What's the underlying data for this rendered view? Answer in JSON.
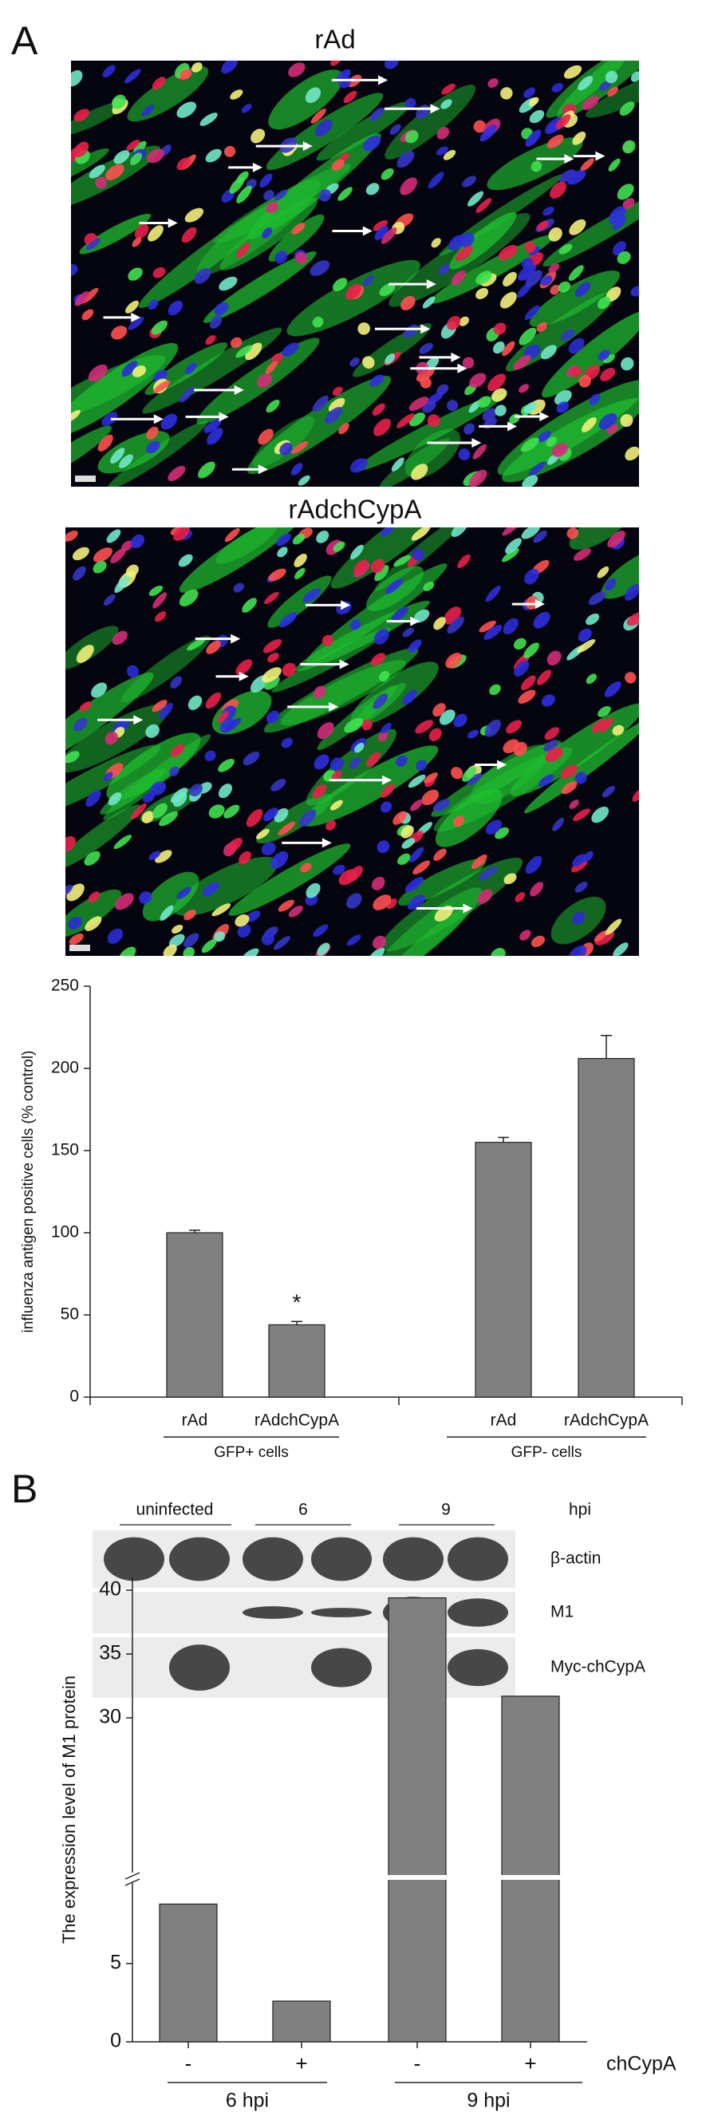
{
  "panel_a": {
    "label": "A",
    "images": [
      {
        "title": "rAd"
      },
      {
        "title": "rAdchCypA"
      }
    ]
  },
  "panel_b": {
    "label": "B",
    "blot": {
      "columns": [
        "uninfected",
        "6",
        "9"
      ],
      "unit": "hpi",
      "rows": [
        "β-actin",
        "M1",
        "Myc-chCypA"
      ]
    }
  },
  "chart_data": [
    {
      "type": "bar",
      "y_label": "influenza antigen positive cells (% control)",
      "categories": [
        "rAd",
        "rAdchCypA",
        "rAd",
        "rAdchCypA"
      ],
      "values": [
        100,
        44,
        155,
        206
      ],
      "errors": [
        1.5,
        2,
        3,
        14
      ],
      "significance": [
        null,
        "*",
        null,
        null
      ],
      "groups": [
        "GFP+ cells",
        "GFP- cells"
      ],
      "color": "#808080",
      "ylim": [
        0,
        250
      ],
      "yticks": [
        0,
        50,
        100,
        150,
        200,
        250
      ]
    },
    {
      "type": "broken_bar",
      "y_label": "The expression level of M1 protein",
      "categories": [
        "-",
        "+",
        "-",
        "+"
      ],
      "factor": "chCypA",
      "groups": [
        "6 hpi",
        "9 hpi"
      ],
      "values": [
        8.8,
        2.6,
        39.4,
        31.7
      ],
      "color": "#808080",
      "ylim_lower": [
        0,
        10.5
      ],
      "ylim_upper": [
        17.5,
        41
      ],
      "yticks": [
        0,
        5,
        30,
        35,
        40
      ]
    }
  ]
}
